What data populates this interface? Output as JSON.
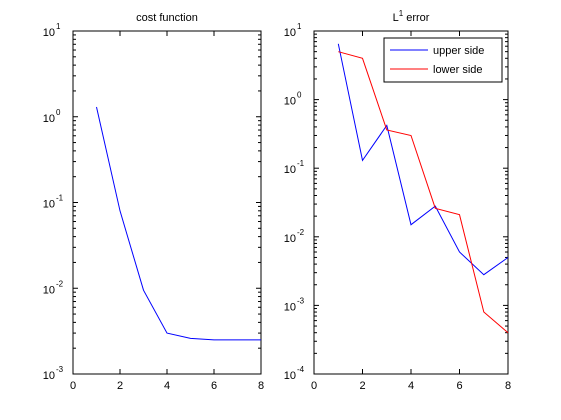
{
  "chart_data": [
    {
      "type": "line",
      "title": "cost function",
      "title_sup": "",
      "title_suffix": "",
      "xlabel": "",
      "ylabel": "",
      "xlim": [
        0,
        8
      ],
      "ylim": [
        0.001,
        10
      ],
      "yscale": "log",
      "grid": false,
      "xticks": [
        0,
        2,
        4,
        6,
        8
      ],
      "yticks": [
        {
          "value": 10,
          "base": "10",
          "exp": "1"
        },
        {
          "value": 1,
          "base": "10",
          "exp": "0"
        },
        {
          "value": 0.1,
          "base": "10",
          "exp": "-1"
        },
        {
          "value": 0.01,
          "base": "10",
          "exp": "-2"
        },
        {
          "value": 0.001,
          "base": "10",
          "exp": "-3"
        }
      ],
      "series": [
        {
          "color": "#0000ff",
          "x": [
            1,
            2,
            3,
            4,
            5,
            6,
            7,
            8
          ],
          "y": [
            1.3,
            0.08,
            0.0095,
            0.003,
            0.0026,
            0.0025,
            0.0025,
            0.0025
          ]
        }
      ],
      "legend": null
    },
    {
      "type": "line",
      "title": "L",
      "title_sup": "1",
      "title_suffix": " error",
      "xlabel": "",
      "ylabel": "",
      "xlim": [
        0,
        8
      ],
      "ylim": [
        0.0001,
        10
      ],
      "yscale": "log",
      "grid": false,
      "xticks": [
        0,
        2,
        4,
        6,
        8
      ],
      "yticks": [
        {
          "value": 10,
          "base": "10",
          "exp": "1"
        },
        {
          "value": 1,
          "base": "10",
          "exp": "0"
        },
        {
          "value": 0.1,
          "base": "10",
          "exp": "-1"
        },
        {
          "value": 0.01,
          "base": "10",
          "exp": "-2"
        },
        {
          "value": 0.001,
          "base": "10",
          "exp": "-3"
        },
        {
          "value": 0.0001,
          "base": "10",
          "exp": "-4"
        }
      ],
      "series": [
        {
          "name": "upper side",
          "color": "#0000ff",
          "x": [
            1,
            2,
            3,
            4,
            5,
            6,
            7,
            8
          ],
          "y": [
            6.5,
            0.13,
            0.42,
            0.015,
            0.028,
            0.006,
            0.0028,
            0.005
          ]
        },
        {
          "name": "lower side",
          "color": "#ff0000",
          "x": [
            1,
            2,
            3,
            4,
            5,
            6,
            7,
            8
          ],
          "y": [
            5.0,
            4.0,
            0.36,
            0.3,
            0.026,
            0.021,
            0.0008,
            0.0004
          ]
        }
      ],
      "legend": "top-right"
    }
  ]
}
